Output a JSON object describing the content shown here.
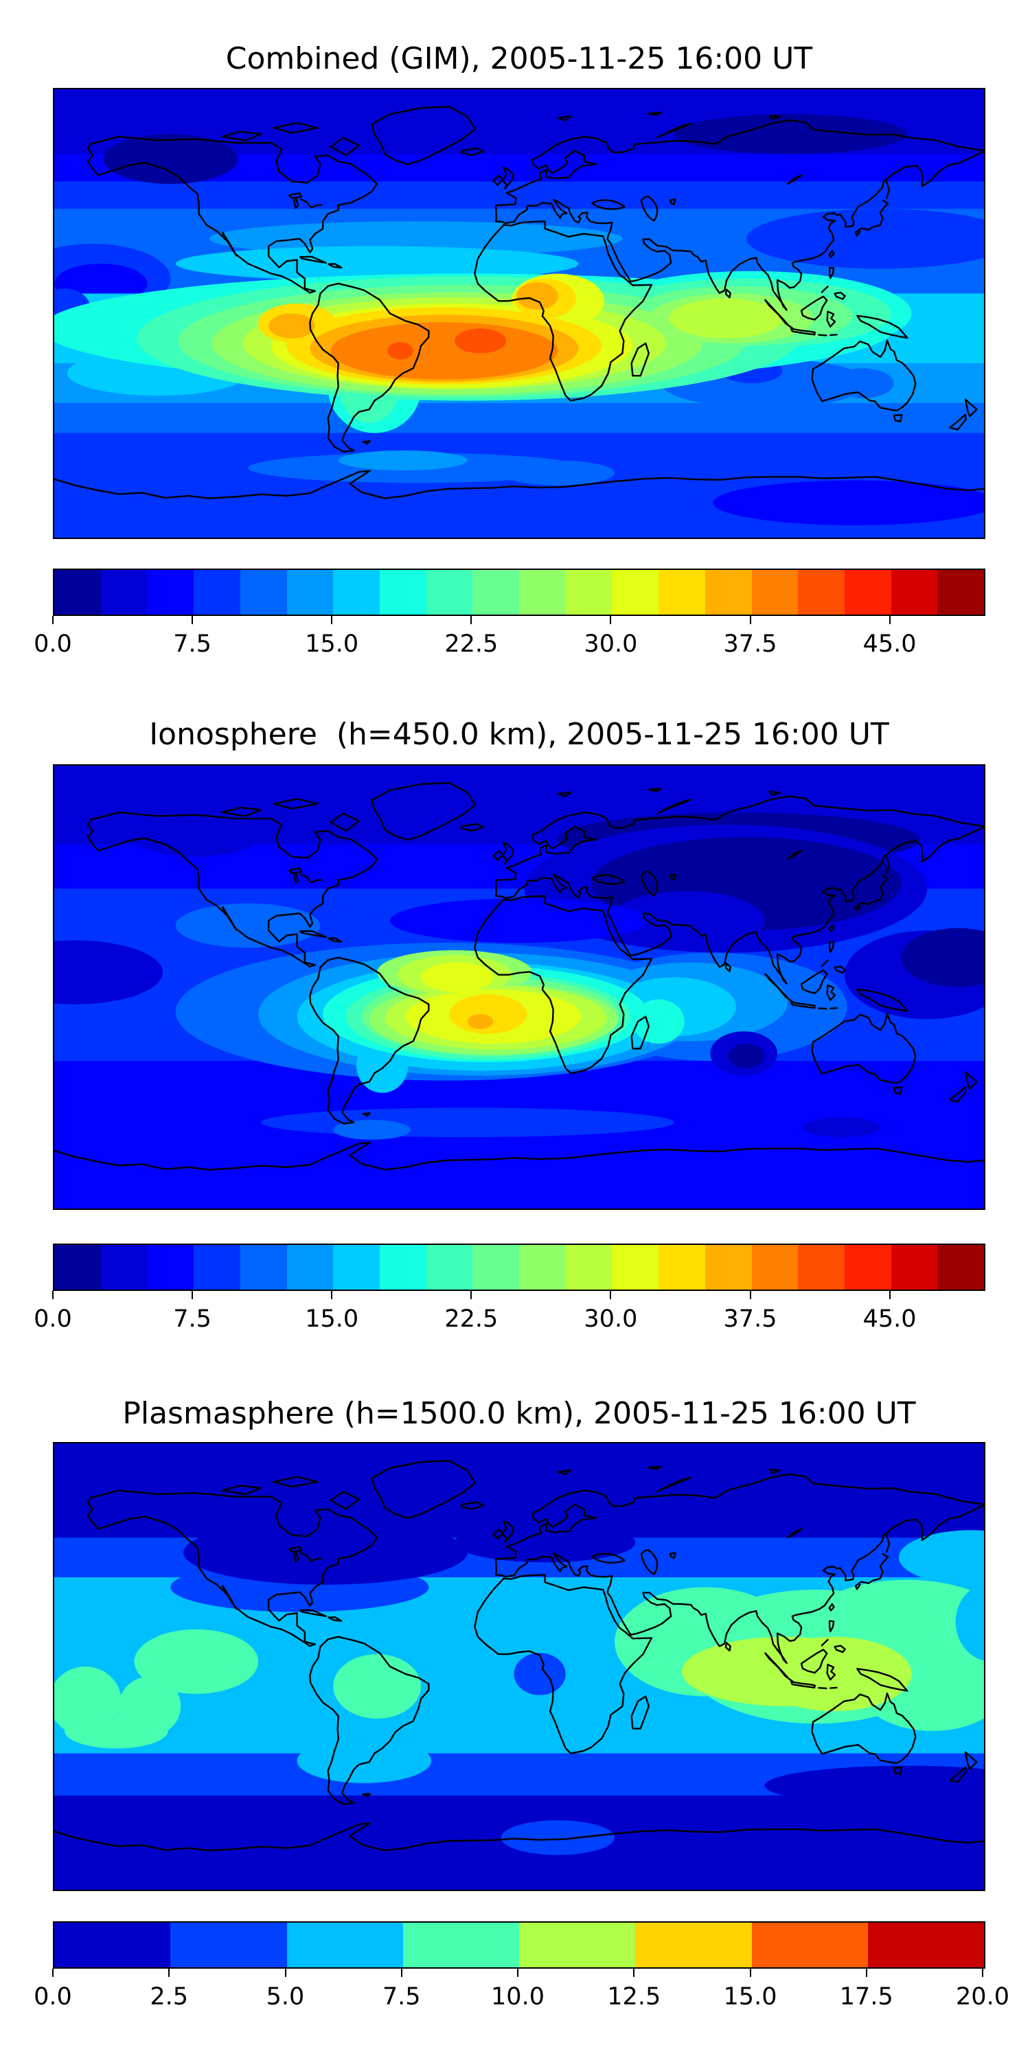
{
  "figure": {
    "background": "#ffffff",
    "coastline_color": "#000000",
    "n_panels": 3
  },
  "chart_data": [
    {
      "type": "filled_contour_map",
      "title": "Combined (GIM), 2005-11-25 16:00 UT",
      "date": "2005-11-25",
      "time_ut": "16:00 UT",
      "colormap": "jet",
      "lon_range": [
        -180,
        180
      ],
      "lat_range": [
        -90,
        90
      ],
      "contour_levels": {
        "min": 0,
        "max": 50,
        "step": 2.5,
        "n": 20
      },
      "colorbar": {
        "orientation": "horizontal",
        "tick_values": [
          0,
          7.5,
          15,
          22.5,
          30,
          37.5,
          45
        ],
        "tick_labels": [
          "0.0",
          "7.5",
          "15.0",
          "22.5",
          "30.0",
          "37.5",
          "45.0"
        ]
      },
      "levels": [
        "#00009D",
        "#0000D6",
        "#0000FF",
        "#0033FF",
        "#0066FF",
        "#0099FF",
        "#00CCFF",
        "#15FFE2",
        "#3EFFB9",
        "#67FF90",
        "#90FF67",
        "#B9FF3E",
        "#E2FF15",
        "#FFDE00",
        "#FFAF00",
        "#FF8000",
        "#FF5000",
        "#FF2100",
        "#D60000",
        "#9D0000"
      ],
      "peak": {
        "description": "equatorial ionization anomaly over South America and tropical Atlantic / West Africa",
        "lon": -15,
        "lat": -10,
        "approx_max": 42
      },
      "low": {
        "description": "minimum over high northern latitudes and polar regions",
        "approx_min": 2
      },
      "features": [
        [
          "band",
          90,
          -90,
          4
        ],
        [
          "band",
          90,
          42,
          3
        ],
        [
          "band",
          90,
          53,
          2
        ],
        [
          "band",
          90,
          64,
          1
        ],
        [
          "e",
          -135,
          62,
          26,
          10,
          0
        ],
        [
          "e",
          105,
          72,
          45,
          8,
          0
        ],
        [
          "e",
          140,
          30,
          52,
          12,
          3
        ],
        [
          "e",
          -165,
          14,
          30,
          14,
          3
        ],
        [
          "e",
          -162,
          12,
          18,
          8,
          2
        ],
        [
          "e",
          -40,
          30,
          80,
          7,
          5
        ],
        [
          "e",
          -55,
          20,
          78,
          7,
          6
        ],
        [
          "band",
          8,
          -20,
          6
        ],
        [
          "band",
          -20,
          -36,
          5
        ],
        [
          "band",
          -36,
          -48,
          4
        ],
        [
          "band",
          -48,
          -90,
          3
        ],
        [
          "e",
          -176,
          2,
          10,
          8,
          3
        ],
        [
          "e",
          130,
          -76,
          55,
          9,
          2
        ],
        [
          "e",
          -40,
          -62,
          65,
          6,
          4
        ],
        [
          "e",
          15,
          -64,
          22,
          5,
          4
        ],
        [
          "e",
          -45,
          -59,
          25,
          4,
          5
        ],
        [
          "e",
          -25,
          -26,
          35,
          9,
          6
        ],
        [
          "e",
          -140,
          -24,
          35,
          9,
          6
        ],
        [
          "e",
          95,
          -28,
          40,
          10,
          4
        ],
        [
          "e",
          90,
          -23,
          12,
          5,
          3
        ],
        [
          "e",
          133,
          -28,
          12,
          6,
          4
        ],
        [
          "e",
          -56,
          -30,
          18,
          18,
          7
        ],
        [
          "e",
          -20,
          -6,
          165,
          22,
          7
        ],
        [
          "e",
          90,
          0,
          62,
          17,
          7
        ],
        [
          "e",
          -58,
          -28,
          12,
          16,
          8
        ],
        [
          "e",
          -20,
          -10,
          128,
          25,
          8
        ],
        [
          "e",
          88,
          0,
          56,
          14,
          8
        ],
        [
          "e",
          -22,
          -11,
          110,
          22.5,
          9
        ],
        [
          "e",
          85,
          -1,
          44,
          12,
          9
        ],
        [
          "e",
          -24,
          -12,
          95,
          20.5,
          10
        ],
        [
          "e",
          82,
          -2,
          32,
          10,
          10
        ],
        [
          "e",
          -25,
          -12,
          82,
          18.5,
          11
        ],
        [
          "e",
          80,
          -2,
          22,
          8,
          11
        ],
        [
          "e",
          -26,
          -13,
          70,
          17,
          12
        ],
        [
          "e",
          15,
          5,
          18,
          11,
          12
        ],
        [
          "e",
          -29,
          -13,
          61,
          15.5,
          13
        ],
        [
          "e",
          10,
          6,
          12,
          8,
          13
        ],
        [
          "e",
          -86,
          -4,
          15,
          8,
          13
        ],
        [
          "e",
          -29,
          -14,
          52,
          13.5,
          14
        ],
        [
          "e",
          7,
          7,
          8,
          5.5,
          14
        ],
        [
          "e",
          -88,
          -5,
          9,
          5,
          14
        ],
        [
          "e",
          -29,
          -15,
          44,
          11.5,
          15
        ],
        [
          "e",
          -15,
          -11,
          10,
          5,
          16
        ],
        [
          "e",
          -46,
          -15,
          5,
          3.5,
          16
        ]
      ]
    },
    {
      "type": "filled_contour_map",
      "title": "Ionosphere  (h=450.0 km), 2005-11-25 16:00 UT",
      "date": "2005-11-25",
      "time_ut": "16:00 UT",
      "height_km": 450.0,
      "colormap": "jet",
      "lon_range": [
        -180,
        180
      ],
      "lat_range": [
        -90,
        90
      ],
      "contour_levels": {
        "min": 0,
        "max": 50,
        "step": 2.5,
        "n": 20
      },
      "colorbar": {
        "orientation": "horizontal",
        "tick_values": [
          0,
          7.5,
          15,
          22.5,
          30,
          37.5,
          45
        ],
        "tick_labels": [
          "0.0",
          "7.5",
          "15.0",
          "22.5",
          "30.0",
          "37.5",
          "45.0"
        ]
      },
      "levels": [
        "#00009D",
        "#0000D6",
        "#0000FF",
        "#0033FF",
        "#0066FF",
        "#0099FF",
        "#00CCFF",
        "#15FFE2",
        "#3EFFB9",
        "#67FF90",
        "#90FF67",
        "#B9FF3E",
        "#E2FF15",
        "#FFDE00",
        "#FFAF00",
        "#FF8000",
        "#FF5000",
        "#FF2100",
        "#D60000",
        "#9D0000"
      ],
      "peak": {
        "description": "maximum over tropical South Atlantic west of equatorial Africa",
        "lon": -13,
        "lat": -13,
        "approx_max": 36
      },
      "low": {
        "description": "deep minimum over night-side Asia and west Pacific",
        "approx_min": 1
      },
      "features": [
        [
          "band",
          90,
          -90,
          3
        ],
        [
          "band",
          90,
          40,
          2
        ],
        [
          "band",
          90,
          58,
          1
        ],
        [
          "e",
          85,
          60,
          70,
          11,
          0
        ],
        [
          "e",
          80,
          40,
          78,
          26,
          1
        ],
        [
          "e",
          88,
          42,
          60,
          19,
          0
        ],
        [
          "e",
          65,
          27,
          30,
          12,
          1
        ],
        [
          "e",
          0,
          27,
          50,
          9,
          2
        ],
        [
          "e",
          -125,
          62,
          25,
          9,
          1
        ],
        [
          "e",
          -105,
          25,
          28,
          9,
          4
        ],
        [
          "e",
          -172,
          6,
          34,
          13,
          1
        ],
        [
          "e",
          158,
          5,
          32,
          18,
          1
        ],
        [
          "e",
          170,
          12,
          22,
          12,
          0
        ],
        [
          "band",
          -30,
          -90,
          2
        ],
        [
          "e",
          -20,
          -55,
          80,
          6,
          3
        ],
        [
          "e",
          -57,
          -58,
          15,
          4,
          4
        ],
        [
          "e",
          125,
          -57,
          15,
          4,
          1
        ],
        [
          "e",
          -28,
          -10,
          105,
          28,
          4
        ],
        [
          "e",
          75,
          -8,
          52,
          22,
          4
        ],
        [
          "e",
          -16,
          -11,
          85,
          25,
          5
        ],
        [
          "e",
          66,
          -6,
          38,
          16,
          5
        ],
        [
          "e",
          -14,
          -12,
          72,
          22,
          6
        ],
        [
          "e",
          60,
          -8,
          24,
          12,
          6
        ],
        [
          "e",
          87,
          -27,
          13,
          9,
          1
        ],
        [
          "e",
          88,
          -28,
          7,
          5,
          0
        ],
        [
          "e",
          -53,
          -32,
          10,
          11,
          6
        ],
        [
          "e",
          -13,
          -11,
          63,
          19.5,
          7
        ],
        [
          "e",
          54,
          -14,
          10,
          9,
          7
        ],
        [
          "e",
          -12,
          -12,
          55,
          17.5,
          8
        ],
        [
          "e",
          -11,
          -12,
          50,
          16,
          9
        ],
        [
          "e",
          -25,
          6,
          30,
          9,
          10
        ],
        [
          "e",
          -10,
          -13,
          48,
          14.5,
          10
        ],
        [
          "e",
          -25,
          5,
          22,
          8,
          11
        ],
        [
          "e",
          -9,
          -12.5,
          43,
          13,
          11
        ],
        [
          "e",
          -24,
          4,
          14,
          6,
          12
        ],
        [
          "e",
          -10,
          -12,
          34,
          11,
          12
        ],
        [
          "e",
          -12,
          -11,
          15,
          8,
          13
        ],
        [
          "e",
          -15,
          -14,
          5,
          3,
          14
        ]
      ]
    },
    {
      "type": "filled_contour_map",
      "title": "Plasmasphere (h=1500.0 km), 2005-11-25 16:00 UT",
      "date": "2005-11-25",
      "time_ut": "16:00 UT",
      "height_km": 1500.0,
      "colormap": "jet",
      "lon_range": [
        -180,
        180
      ],
      "lat_range": [
        -90,
        90
      ],
      "contour_levels": {
        "min": 0,
        "max": 20,
        "step": 2.5,
        "n": 8
      },
      "colorbar": {
        "orientation": "horizontal",
        "tick_values": [
          0,
          2.5,
          5,
          7.5,
          10,
          12.5,
          15,
          17.5,
          20
        ],
        "tick_labels": [
          "0.0",
          "2.5",
          "5.0",
          "7.5",
          "10.0",
          "12.5",
          "15.0",
          "17.5",
          "20.0"
        ]
      },
      "levels": [
        "#0000C8",
        "#0040FF",
        "#00BFFF",
        "#48FFAF",
        "#AFFF48",
        "#FFD200",
        "#FF5C00",
        "#C80000"
      ],
      "peak": {
        "description": "maximum over Southeast Asia / Maritime Continent",
        "lon": 110,
        "lat": -3,
        "approx_max": 11
      },
      "low": {
        "description": "minimum at high latitudes of both hemispheres",
        "approx_min": 1
      },
      "features": [
        [
          "band",
          90,
          -90,
          2
        ],
        [
          "band",
          90,
          36,
          1
        ],
        [
          "e",
          -85,
          32,
          50,
          10,
          1
        ],
        [
          "band",
          90,
          52,
          0
        ],
        [
          "e",
          -75,
          46,
          55,
          13,
          0
        ],
        [
          "e",
          10,
          50,
          35,
          8,
          0
        ],
        [
          "e",
          175,
          44,
          28,
          11,
          2
        ],
        [
          "band",
          -35,
          -90,
          1
        ],
        [
          "band",
          -52,
          -90,
          0
        ],
        [
          "e",
          150,
          -48,
          55,
          8,
          0
        ],
        [
          "e",
          -60,
          -38,
          26,
          9,
          2
        ],
        [
          "e",
          15,
          -69,
          22,
          7,
          1
        ],
        [
          "e",
          -125,
          2,
          24,
          13,
          3
        ],
        [
          "e",
          -168,
          -14,
          14,
          14,
          3
        ],
        [
          "e",
          -143,
          -16,
          12,
          12,
          3
        ],
        [
          "e",
          -156,
          -26,
          20,
          7,
          3
        ],
        [
          "e",
          -55,
          -8,
          17,
          13,
          3
        ],
        [
          "e",
          72,
          10,
          35,
          22,
          3
        ],
        [
          "e",
          115,
          4,
          52,
          27,
          3
        ],
        [
          "e",
          150,
          15,
          40,
          20,
          3
        ],
        [
          "e",
          160,
          -6,
          30,
          20,
          3
        ],
        [
          "e",
          183,
          18,
          14,
          16,
          2
        ],
        [
          "e",
          103,
          -2,
          40,
          14,
          4
        ],
        [
          "e",
          122,
          -3,
          30,
          15,
          4
        ],
        [
          "e",
          8,
          -3,
          10,
          8.5,
          1
        ]
      ]
    }
  ]
}
